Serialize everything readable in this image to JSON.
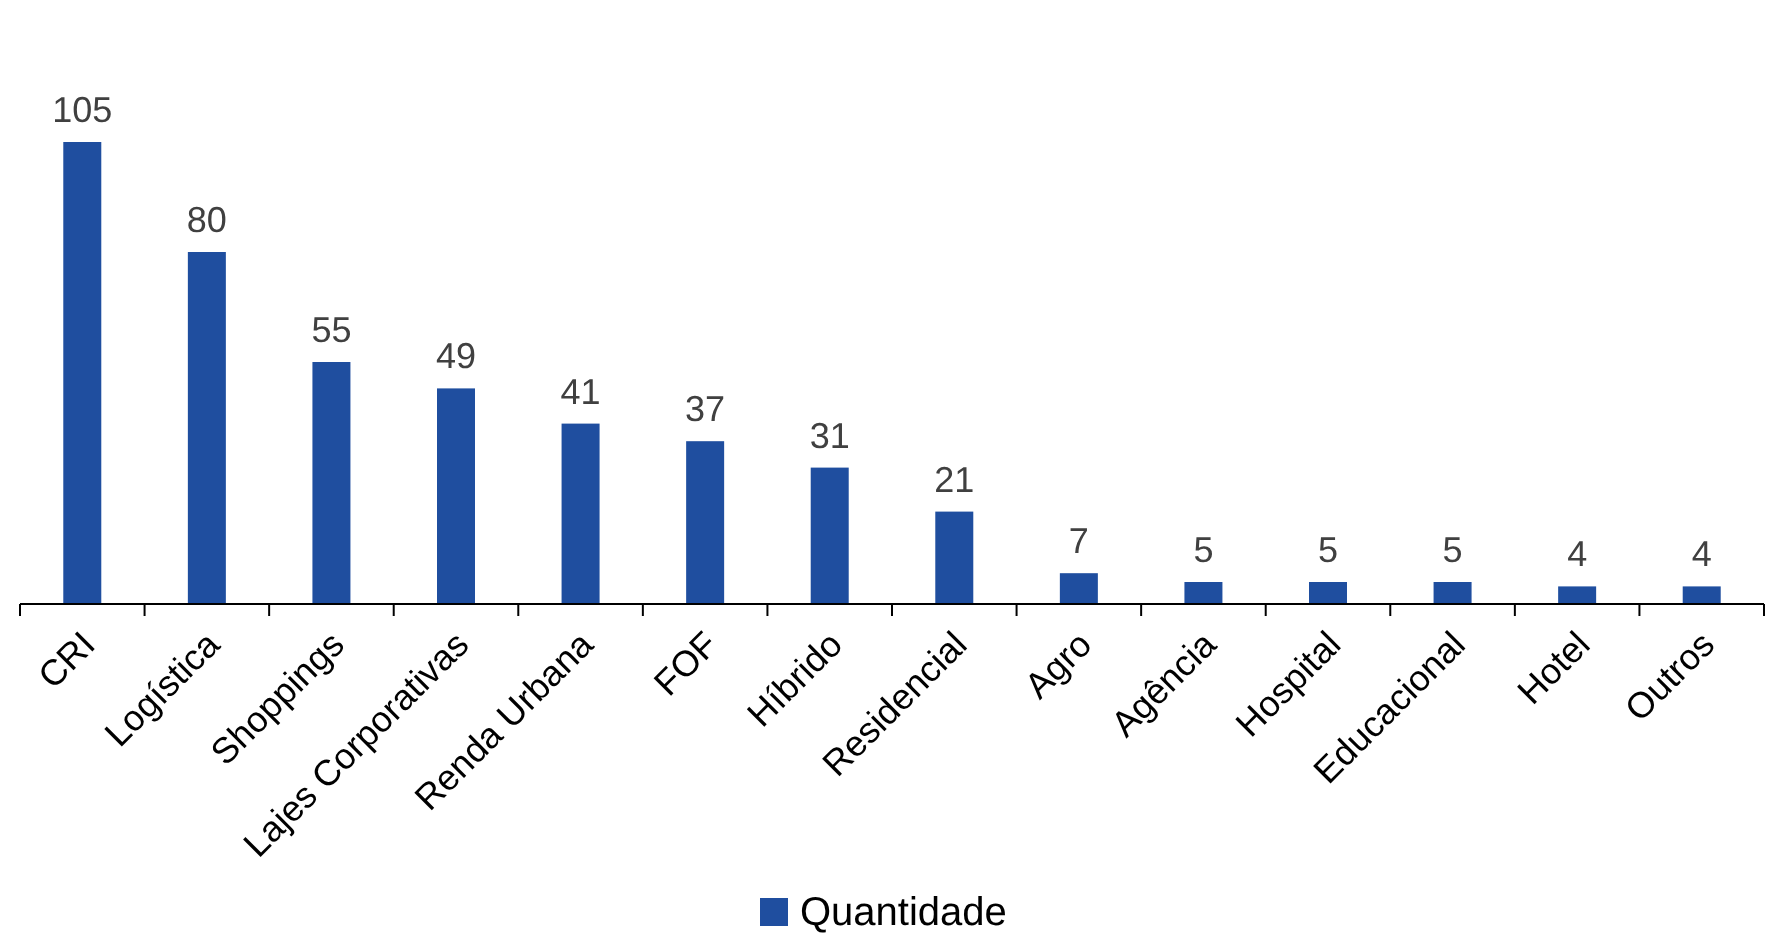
{
  "chart_data": {
    "type": "bar",
    "categories": [
      "CRI",
      "Logística",
      "Shoppings",
      "Lajes Corporativas",
      "Renda Urbana",
      "FOF",
      "Híbrido",
      "Residencial",
      "Agro",
      "Agência",
      "Hospital",
      "Educacional",
      "Hotel",
      "Outros"
    ],
    "series": [
      {
        "name": "Quantidade",
        "color": "#1f4e9f",
        "values": [
          105,
          80,
          55,
          49,
          41,
          37,
          31,
          21,
          7,
          5,
          5,
          5,
          4,
          4
        ]
      }
    ],
    "data_labels": true,
    "legend": "bottom"
  }
}
